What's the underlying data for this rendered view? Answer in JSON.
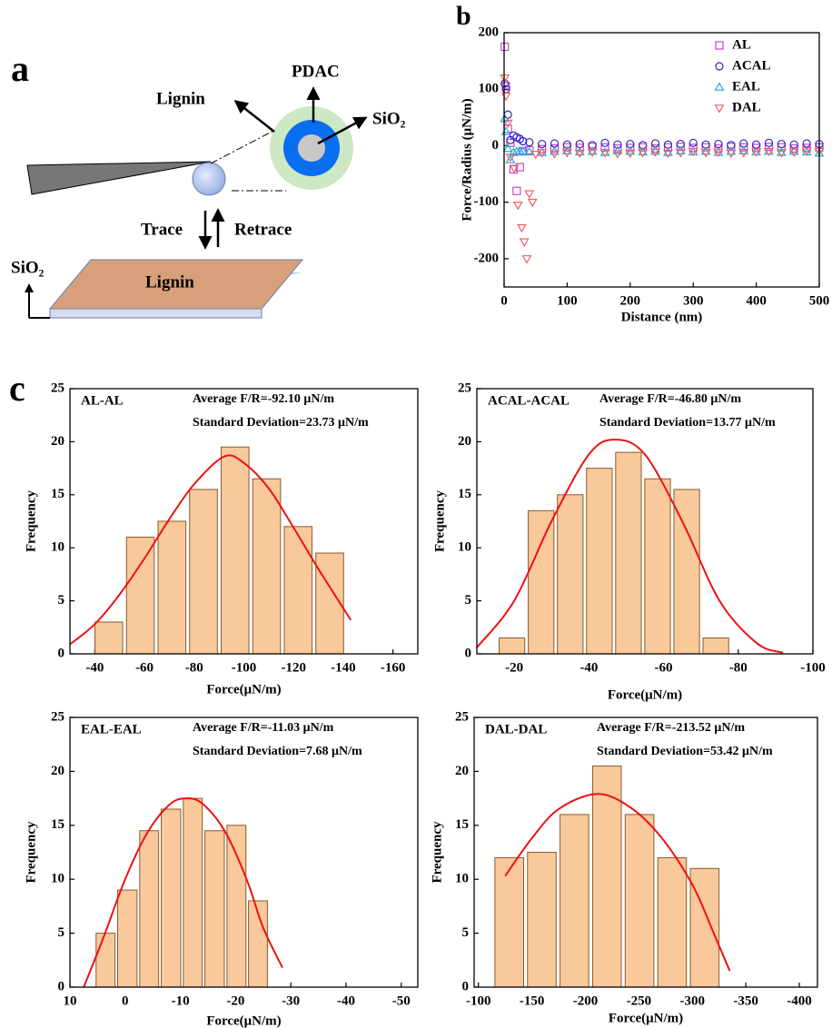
{
  "panel_a": {
    "label": "a",
    "lignin_arrow": "Lignin",
    "pdac": "PDAC",
    "sio2_core": "SiO₂",
    "trace": "Trace",
    "retrace": "Retrace",
    "sio2_substrate": "SiO₂",
    "lignin_layer": "Lignin"
  },
  "chart_data": [
    {
      "type": "scatter",
      "panel": "b",
      "xlabel": "Distance (nm)",
      "ylabel": "Force/Radius (μN/m)",
      "xlim": [
        0,
        500
      ],
      "ylim": [
        -250,
        200
      ],
      "xticks": [
        0,
        100,
        200,
        300,
        400,
        500
      ],
      "yticks": [
        -200,
        -100,
        0,
        100,
        200
      ],
      "legend": "upper right",
      "series": [
        {
          "name": "AL",
          "color": "#cc44cc",
          "marker": "square",
          "x": [
            1,
            3,
            6,
            10,
            15,
            20,
            25,
            30,
            40,
            60,
            80,
            100,
            120,
            140,
            160,
            180,
            200,
            220,
            240,
            260,
            280,
            300,
            320,
            340,
            360,
            380,
            400,
            420,
            440,
            460,
            480,
            500
          ],
          "values": [
            175,
            105,
            30,
            5,
            -42,
            -80,
            -38,
            -10,
            -8,
            -6,
            -5,
            -3,
            -4,
            -2,
            -3,
            -5,
            -4,
            -3,
            -5,
            -3,
            -2,
            -4,
            -3,
            -5,
            -2,
            -3,
            -4,
            -2,
            -3,
            -5,
            -4,
            -3
          ]
        },
        {
          "name": "ACAL",
          "color": "#3322cc",
          "marker": "circle",
          "x": [
            1,
            3,
            6,
            10,
            15,
            20,
            25,
            30,
            40,
            60,
            80,
            100,
            120,
            140,
            160,
            180,
            200,
            220,
            240,
            260,
            280,
            300,
            320,
            340,
            360,
            380,
            400,
            420,
            440,
            460,
            480,
            500
          ],
          "values": [
            110,
            100,
            55,
            10,
            18,
            15,
            12,
            8,
            6,
            3,
            4,
            2,
            3,
            1,
            5,
            2,
            3,
            1,
            4,
            2,
            3,
            5,
            2,
            3,
            1,
            4,
            2,
            5,
            3,
            2,
            4,
            3
          ]
        },
        {
          "name": "EAL",
          "color": "#22aadd",
          "marker": "triangle-up",
          "x": [
            1,
            3,
            6,
            10,
            15,
            20,
            25,
            30,
            40,
            60,
            80,
            100,
            120,
            140,
            160,
            180,
            200,
            220,
            240,
            260,
            280,
            300,
            320,
            340,
            360,
            380,
            400,
            420,
            440,
            460,
            480,
            500
          ],
          "values": [
            48,
            25,
            -5,
            -25,
            -12,
            -10,
            -9,
            -10,
            -11,
            -12,
            -10,
            -9,
            -11,
            -10,
            -12,
            -9,
            -10,
            -11,
            -10,
            -12,
            -9,
            -11,
            -10,
            -12,
            -10,
            -9,
            -11,
            -10,
            -12,
            -10,
            -11,
            -13
          ]
        },
        {
          "name": "DAL",
          "color": "#ee6060",
          "marker": "triangle-down",
          "x": [
            1,
            3,
            6,
            10,
            16,
            22,
            28,
            32,
            36,
            40,
            45,
            50,
            60,
            80,
            100,
            120,
            140,
            160,
            180,
            200,
            220,
            240,
            260,
            280,
            300,
            320,
            340,
            360,
            380,
            400,
            420,
            440,
            460,
            480,
            500
          ],
          "values": [
            120,
            88,
            40,
            -20,
            -40,
            -105,
            -145,
            -170,
            -200,
            -85,
            -100,
            -15,
            -12,
            -14,
            -12,
            -13,
            -11,
            -12,
            -14,
            -13,
            -12,
            -11,
            -13,
            -12,
            -10,
            -12,
            -11,
            -13,
            -12,
            -11,
            -10,
            -12,
            -11,
            -9,
            -10
          ]
        }
      ]
    },
    {
      "type": "histogram",
      "panel": "c",
      "title": "AL-AL",
      "annotations": [
        "Average F/R=-92.10 μN/m",
        "Standard Deviation=23.73 μN/m"
      ],
      "xlabel": "Force(μN/m)",
      "ylabel": "Frequency",
      "color": "#f9c89b",
      "xlim": [
        -30,
        -170
      ],
      "ylim": [
        0,
        25
      ],
      "xticks": [
        -40,
        -60,
        -80,
        -100,
        -120,
        -140,
        -160
      ],
      "yticks": [
        0,
        5,
        10,
        15,
        20,
        25
      ],
      "bins": [
        -39.3,
        -52,
        -64.7,
        -77.4,
        -90.1,
        -102.8,
        -115.5,
        -128.2,
        -140.9
      ],
      "values": [
        3,
        11,
        12.5,
        15.5,
        19.5,
        16.5,
        12,
        9.5
      ],
      "fit": {
        "color": "#ee1111",
        "x": [
          -30,
          -40,
          -50,
          -60,
          -70,
          -80,
          -92,
          -100,
          -110,
          -120,
          -130,
          -143
        ],
        "values": [
          0.9,
          2.8,
          5.6,
          9.0,
          12.7,
          16.0,
          18.6,
          18.0,
          15.6,
          11.9,
          8.0,
          3.2
        ]
      }
    },
    {
      "type": "histogram",
      "title": "ACAL-ACAL",
      "annotations": [
        "Average F/R=-46.80 μN/m",
        "Standard Deviation=13.77 μN/m"
      ],
      "xlabel": "Force(μN/m)",
      "ylabel": "Frequency",
      "color": "#f9c89b",
      "xlim": [
        -10,
        -100
      ],
      "ylim": [
        0,
        25
      ],
      "xticks": [
        -20,
        -40,
        -60,
        -80,
        -100
      ],
      "yticks": [
        0,
        5,
        10,
        15,
        20,
        25
      ],
      "bins": [
        -15.5,
        -23.3,
        -31.1,
        -38.9,
        -46.7,
        -54.5,
        -62.3,
        -70.1,
        -77.9
      ],
      "values": [
        1.5,
        13.5,
        15,
        17.5,
        19,
        16.5,
        15.5,
        1.5
      ],
      "fit": {
        "color": "#ee1111",
        "x": [
          -10,
          -20,
          -30,
          -40,
          -47,
          -55,
          -65,
          -75,
          -85,
          -92
        ],
        "values": [
          0.6,
          5,
          12.5,
          18.8,
          20.2,
          18.8,
          12.5,
          5,
          1,
          0.1
        ]
      }
    },
    {
      "type": "histogram",
      "title": "EAL-EAL",
      "annotations": [
        "Average F/R=-11.03 μN/m",
        "Standard Deviation=7.68 μN/m"
      ],
      "xlabel": "Force(μN/m)",
      "ylabel": "Frequency",
      "color": "#f9c89b",
      "xlim": [
        10,
        -53
      ],
      "ylim": [
        0,
        25
      ],
      "xticks": [
        10,
        0,
        -10,
        -20,
        -30,
        -40,
        -50
      ],
      "yticks": [
        0,
        5,
        10,
        15,
        20,
        25
      ],
      "bins": [
        5.5,
        1.6,
        -2.4,
        -6.3,
        -10.3,
        -14.2,
        -18.2,
        -22.1,
        -26
      ],
      "values": [
        5,
        9,
        14.5,
        16.5,
        17.5,
        14.5,
        15,
        8
      ],
      "fit": {
        "color": "#ee1111",
        "x": [
          7.5,
          4,
          0,
          -4,
          -8,
          -11,
          -14,
          -18,
          -22,
          -25,
          -28.5
        ],
        "values": [
          0,
          4.5,
          10,
          14.3,
          16.9,
          17.5,
          17,
          14.5,
          10,
          5.5,
          1.8
        ]
      }
    },
    {
      "type": "histogram",
      "title": "DAL-DAL",
      "annotations": [
        "Average F/R=-213.52 μN/m",
        "Standard Deviation=53.42 μN/m"
      ],
      "xlabel": "Force(μN/m)",
      "ylabel": "Frequency",
      "color": "#f9c89b",
      "xlim": [
        -96,
        -417
      ],
      "ylim": [
        0,
        25
      ],
      "xticks": [
        -100,
        -150,
        -200,
        -250,
        -300,
        -350,
        -400
      ],
      "yticks": [
        0,
        5,
        10,
        15,
        20,
        25
      ],
      "bins": [
        -113.6,
        -144.1,
        -174.5,
        -205,
        -235.4,
        -265.9,
        -296.3,
        -326.8
      ],
      "values": [
        12,
        12.5,
        16,
        20.5,
        16,
        12,
        11
      ],
      "fit": {
        "color": "#ee1111",
        "x": [
          -125,
          -150,
          -175,
          -210,
          -240,
          -270,
          -300,
          -320,
          -335
        ],
        "values": [
          10.3,
          13.8,
          16.5,
          17.9,
          16.8,
          14,
          9.5,
          5,
          1.5
        ]
      }
    }
  ]
}
